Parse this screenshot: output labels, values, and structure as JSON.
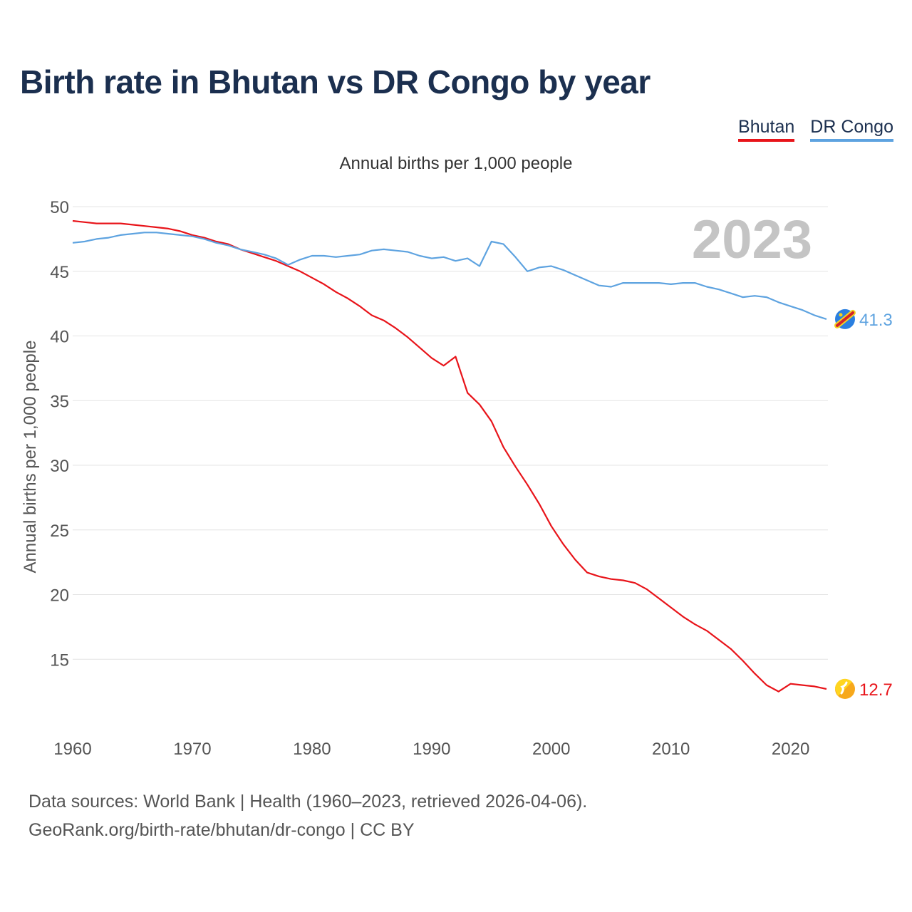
{
  "title": "Birth rate in Bhutan vs DR Congo by year",
  "subtitle": "Annual births per 1,000 people",
  "legend": [
    {
      "name": "Bhutan",
      "color": "#e8141a"
    },
    {
      "name": "DR Congo",
      "color": "#5ea3e0"
    }
  ],
  "footer": {
    "line1": "Data sources: World Bank | Health (1960–2023, retrieved 2026-04-06).",
    "line2": "GeoRank.org/birth-rate/bhutan/dr-congo | CC BY"
  },
  "chart_data": {
    "type": "line",
    "title": "Birth rate in Bhutan vs DR Congo by year",
    "ylabel": "Annual births per 1,000 people",
    "xlabel": "",
    "year_watermark": "2023",
    "xlim": [
      1960,
      2023
    ],
    "ylim": [
      10,
      50
    ],
    "x_ticks": [
      "1960",
      "1970",
      "1980",
      "1990",
      "2000",
      "2010",
      "2020"
    ],
    "y_ticks": [
      "15",
      "20",
      "25",
      "30",
      "35",
      "40",
      "45",
      "50"
    ],
    "x": [
      1960,
      1961,
      1962,
      1963,
      1964,
      1965,
      1966,
      1967,
      1968,
      1969,
      1970,
      1971,
      1972,
      1973,
      1974,
      1975,
      1976,
      1977,
      1978,
      1979,
      1980,
      1981,
      1982,
      1983,
      1984,
      1985,
      1986,
      1987,
      1988,
      1989,
      1990,
      1991,
      1992,
      1993,
      1994,
      1995,
      1996,
      1997,
      1998,
      1999,
      2000,
      2001,
      2002,
      2003,
      2004,
      2005,
      2006,
      2007,
      2008,
      2009,
      2010,
      2011,
      2012,
      2013,
      2014,
      2015,
      2016,
      2017,
      2018,
      2019,
      2020,
      2021,
      2022,
      2023
    ],
    "series": [
      {
        "name": "Bhutan",
        "color": "#e8141a",
        "end_label": "12.7",
        "values": [
          48.9,
          48.8,
          48.7,
          48.7,
          48.7,
          48.6,
          48.5,
          48.4,
          48.3,
          48.1,
          47.8,
          47.6,
          47.3,
          47.1,
          46.7,
          46.4,
          46.1,
          45.8,
          45.4,
          45.0,
          44.5,
          44.0,
          43.4,
          42.9,
          42.3,
          41.6,
          41.2,
          40.6,
          39.9,
          39.1,
          38.3,
          37.7,
          38.4,
          35.6,
          34.7,
          33.4,
          31.4,
          29.9,
          28.5,
          27.0,
          25.3,
          23.9,
          22.7,
          21.7,
          21.4,
          21.2,
          21.1,
          20.9,
          20.4,
          19.7,
          19.0,
          18.3,
          17.7,
          17.2,
          16.5,
          15.8,
          14.9,
          13.9,
          13.0,
          12.5,
          13.1,
          13.0,
          12.9,
          12.7
        ]
      },
      {
        "name": "DR Congo",
        "color": "#5ea3e0",
        "end_label": "41.3",
        "values": [
          47.2,
          47.3,
          47.5,
          47.6,
          47.8,
          47.9,
          48.0,
          48.0,
          47.9,
          47.8,
          47.7,
          47.5,
          47.2,
          47.0,
          46.7,
          46.5,
          46.3,
          46.0,
          45.5,
          45.9,
          46.2,
          46.2,
          46.1,
          46.2,
          46.3,
          46.6,
          46.7,
          46.6,
          46.5,
          46.2,
          46.0,
          46.1,
          45.8,
          46.0,
          45.4,
          47.3,
          47.1,
          46.1,
          45.0,
          45.3,
          45.4,
          45.1,
          44.7,
          44.3,
          43.9,
          43.8,
          44.1,
          44.1,
          44.1,
          44.1,
          44.0,
          44.1,
          44.1,
          43.8,
          43.6,
          43.3,
          43.0,
          43.1,
          43.0,
          42.6,
          42.3,
          42.0,
          41.6,
          41.3
        ]
      }
    ]
  }
}
